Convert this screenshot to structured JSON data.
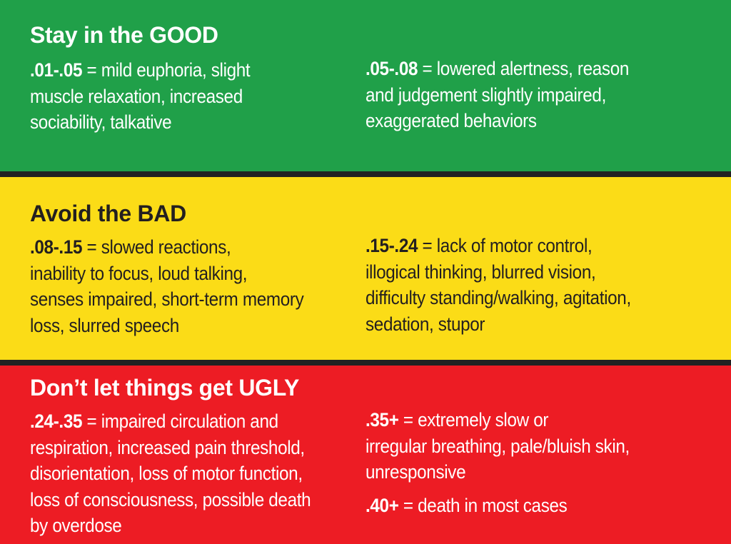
{
  "bands": {
    "good": {
      "color": "#20a049",
      "heading": "Stay in the GOOD",
      "left": {
        "range": ".01-.05",
        "separator": " = ",
        "lines": [
          "mild euphoria, slight",
          "muscle relaxation, increased",
          "sociability, talkative"
        ]
      },
      "right": {
        "range": ".05-.08",
        "separator": " = ",
        "lines": [
          "lowered alertness, reason",
          "and judgement slightly impaired,",
          "exaggerated behaviors"
        ]
      }
    },
    "bad": {
      "color": "#fbdc17",
      "heading": "Avoid the BAD",
      "left": {
        "range": ".08-.15",
        "separator": " = ",
        "lines": [
          "slowed reactions,",
          "inability to focus, loud talking,",
          "senses impaired, short-term memory",
          "loss, slurred speech"
        ]
      },
      "right": {
        "range": ".15-.24",
        "separator": " = ",
        "lines": [
          "lack of motor control,",
          "illogical thinking, blurred vision,",
          "difficulty standing/walking, agitation,",
          "sedation, stupor"
        ]
      }
    },
    "ugly": {
      "color": "#ed1c24",
      "heading": "Don’t let things get UGLY",
      "left": {
        "range": ".24-.35",
        "separator": " = ",
        "lines": [
          "impaired circulation and",
          "respiration, increased pain threshold,",
          "disorientation, loss of motor function,",
          "loss of consciousness, possible death",
          "by overdose"
        ]
      },
      "right_top": {
        "range": ".35+",
        "separator": " = ",
        "lines": [
          "extremely slow or",
          "irregular breathing, pale/bluish skin,",
          "unresponsive"
        ]
      },
      "right_bottom": {
        "range": ".40+",
        "separator": " = ",
        "lines": [
          "death in most cases"
        ]
      }
    }
  }
}
